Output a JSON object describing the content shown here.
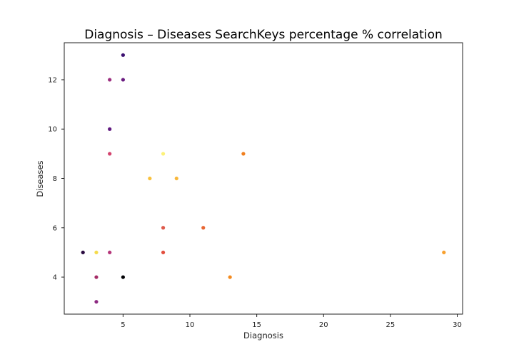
{
  "chart_data": {
    "type": "scatter",
    "title": "Diagnosis – Diseases SearchKeys percentage % correlation",
    "xlabel": "Diagnosis",
    "ylabel": "Diseases",
    "xlim": [
      0.6,
      30.4
    ],
    "ylim": [
      2.5,
      13.5
    ],
    "xticks": [
      5,
      10,
      15,
      20,
      25,
      30
    ],
    "yticks": [
      4,
      6,
      8,
      10,
      12
    ],
    "grid": false,
    "legend": "none",
    "colormap": "inferno",
    "points": [
      {
        "x": 5,
        "y": 13,
        "color": "#3b0f70"
      },
      {
        "x": 4,
        "y": 12,
        "color": "#9c2e7f"
      },
      {
        "x": 5,
        "y": 12,
        "color": "#6a1c81"
      },
      {
        "x": 4,
        "y": 10,
        "color": "#5f187f"
      },
      {
        "x": 4,
        "y": 9,
        "color": "#d3436e"
      },
      {
        "x": 8,
        "y": 9,
        "color": "#fcf17a"
      },
      {
        "x": 14,
        "y": 9,
        "color": "#f07f1f"
      },
      {
        "x": 7,
        "y": 8,
        "color": "#f9c13c"
      },
      {
        "x": 9,
        "y": 8,
        "color": "#f8b73a"
      },
      {
        "x": 8,
        "y": 6,
        "color": "#de5a4b"
      },
      {
        "x": 11,
        "y": 6,
        "color": "#e86633"
      },
      {
        "x": 2,
        "y": 5,
        "color": "#2a0b40"
      },
      {
        "x": 3,
        "y": 5,
        "color": "#f5db4c"
      },
      {
        "x": 4,
        "y": 5,
        "color": "#b5367a"
      },
      {
        "x": 8,
        "y": 5,
        "color": "#e24f3f"
      },
      {
        "x": 29,
        "y": 5,
        "color": "#f8a02e"
      },
      {
        "x": 3,
        "y": 4,
        "color": "#a52c66"
      },
      {
        "x": 5,
        "y": 4,
        "color": "#000004"
      },
      {
        "x": 13,
        "y": 4,
        "color": "#f48a1e"
      },
      {
        "x": 3,
        "y": 3,
        "color": "#8c2981"
      }
    ]
  }
}
